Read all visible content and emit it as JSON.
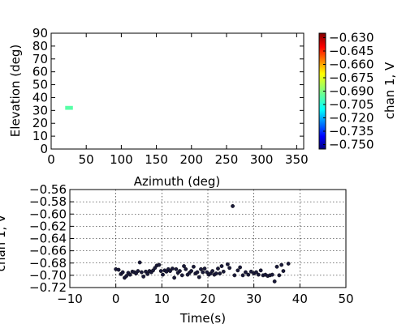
{
  "chart_data": [
    {
      "type": "heatmap",
      "xlabel": "Azimuth (deg)",
      "ylabel": "Elevation (deg)",
      "xlim": [
        0,
        360
      ],
      "ylim": [
        0,
        90
      ],
      "xticks": [
        0,
        50,
        100,
        150,
        200,
        250,
        300,
        350
      ],
      "yticks": [
        0,
        10,
        20,
        30,
        40,
        50,
        60,
        70,
        80,
        90
      ],
      "cells": [
        {
          "az_min": 20,
          "az_max": 31,
          "el_min": 30.5,
          "el_max": 33.5,
          "value": -0.695
        }
      ],
      "colorbar": {
        "label": "chan 1, V",
        "min": -0.755,
        "max": -0.625,
        "ticks": [
          -0.63,
          -0.645,
          -0.66,
          -0.675,
          -0.69,
          -0.705,
          -0.72,
          -0.735,
          -0.75
        ],
        "tick_labels": [
          "−0.630",
          "−0.645",
          "−0.660",
          "−0.675",
          "−0.690",
          "−0.705",
          "−0.720",
          "−0.735",
          "−0.750"
        ],
        "colormap": "jet"
      }
    },
    {
      "type": "scatter",
      "xlabel": "Time(s)",
      "ylabel": "chan 1, V",
      "xlim": [
        -10,
        50
      ],
      "ylim": [
        -0.72,
        -0.56
      ],
      "xticks": [
        -10,
        0,
        10,
        20,
        30,
        40,
        50
      ],
      "xtick_labels": [
        "−10",
        "0",
        "10",
        "20",
        "30",
        "40",
        "50"
      ],
      "yticks": [
        -0.56,
        -0.58,
        -0.6,
        -0.62,
        -0.64,
        -0.66,
        -0.68,
        -0.7,
        -0.72
      ],
      "ytick_labels": [
        "−0.56",
        "−0.58",
        "−0.60",
        "−0.62",
        "−0.64",
        "−0.66",
        "−0.68",
        "−0.70",
        "−0.72"
      ],
      "grid": true,
      "marker_color": "#1a1a3a",
      "points": [
        [
          0.0,
          -0.69
        ],
        [
          0.6,
          -0.691
        ],
        [
          1.1,
          -0.698
        ],
        [
          1.5,
          -0.695
        ],
        [
          1.9,
          -0.704
        ],
        [
          2.3,
          -0.701
        ],
        [
          2.7,
          -0.696
        ],
        [
          3.1,
          -0.699
        ],
        [
          3.6,
          -0.694
        ],
        [
          4.0,
          -0.695
        ],
        [
          4.4,
          -0.697
        ],
        [
          4.8,
          -0.693
        ],
        [
          5.2,
          -0.679
        ],
        [
          5.6,
          -0.695
        ],
        [
          6.0,
          -0.702
        ],
        [
          6.5,
          -0.694
        ],
        [
          6.9,
          -0.698
        ],
        [
          7.3,
          -0.693
        ],
        [
          7.7,
          -0.695
        ],
        [
          8.1,
          -0.692
        ],
        [
          8.5,
          -0.688
        ],
        [
          8.9,
          -0.684
        ],
        [
          9.4,
          -0.683
        ],
        [
          9.8,
          -0.693
        ],
        [
          10.2,
          -0.699
        ],
        [
          10.6,
          -0.692
        ],
        [
          11.0,
          -0.694
        ],
        [
          11.4,
          -0.69
        ],
        [
          11.8,
          -0.693
        ],
        [
          12.3,
          -0.689
        ],
        [
          12.7,
          -0.704
        ],
        [
          13.1,
          -0.69
        ],
        [
          13.5,
          -0.696
        ],
        [
          13.9,
          -0.693
        ],
        [
          14.4,
          -0.7
        ],
        [
          14.8,
          -0.685
        ],
        [
          15.2,
          -0.69
        ],
        [
          15.6,
          -0.699
        ],
        [
          16.0,
          -0.696
        ],
        [
          16.4,
          -0.693
        ],
        [
          16.9,
          -0.686
        ],
        [
          17.3,
          -0.697
        ],
        [
          17.7,
          -0.695
        ],
        [
          18.1,
          -0.703
        ],
        [
          18.5,
          -0.69
        ],
        [
          18.9,
          -0.695
        ],
        [
          19.3,
          -0.689
        ],
        [
          19.8,
          -0.695
        ],
        [
          20.2,
          -0.699
        ],
        [
          20.6,
          -0.697
        ],
        [
          21.0,
          -0.693
        ],
        [
          21.4,
          -0.699
        ],
        [
          21.8,
          -0.697
        ],
        [
          22.2,
          -0.689
        ],
        [
          22.6,
          -0.697
        ],
        [
          23.0,
          -0.685
        ],
        [
          23.4,
          -0.694
        ],
        [
          24.3,
          -0.682
        ],
        [
          24.7,
          -0.688
        ],
        [
          25.4,
          -0.587
        ],
        [
          25.8,
          -0.7
        ],
        [
          26.5,
          -0.692
        ],
        [
          27.0,
          -0.687
        ],
        [
          27.6,
          -0.7
        ],
        [
          28.2,
          -0.695
        ],
        [
          28.8,
          -0.699
        ],
        [
          29.4,
          -0.694
        ],
        [
          30.0,
          -0.697
        ],
        [
          30.5,
          -0.695
        ],
        [
          31.0,
          -0.699
        ],
        [
          31.5,
          -0.692
        ],
        [
          32.0,
          -0.7
        ],
        [
          32.5,
          -0.699
        ],
        [
          33.0,
          -0.701
        ],
        [
          33.5,
          -0.7
        ],
        [
          34.0,
          -0.699
        ],
        [
          34.5,
          -0.71
        ],
        [
          35.0,
          -0.686
        ],
        [
          35.5,
          -0.7
        ],
        [
          36.0,
          -0.683
        ],
        [
          36.4,
          -0.693
        ],
        [
          37.5,
          -0.681
        ]
      ]
    }
  ]
}
